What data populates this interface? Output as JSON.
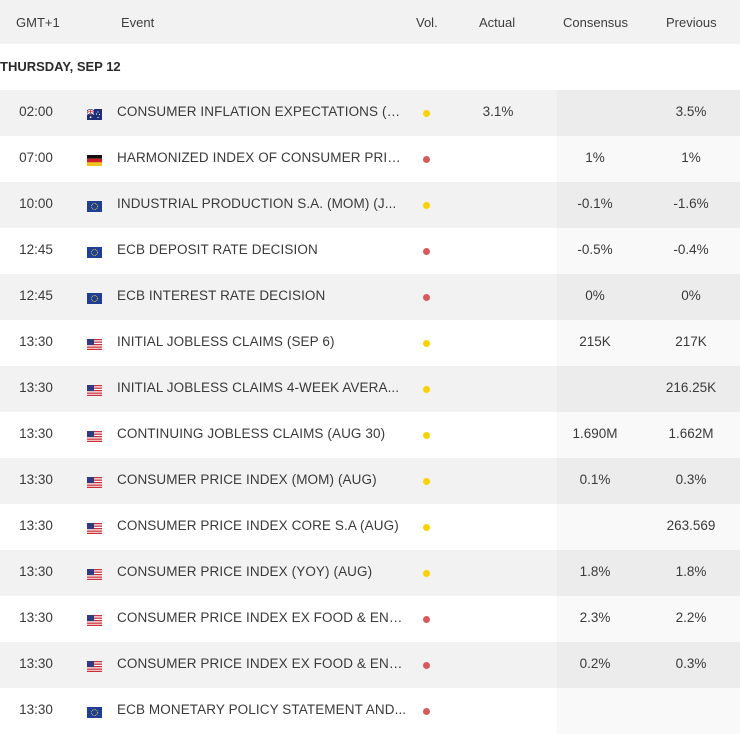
{
  "header": {
    "gmt": "GMT+1",
    "event": "Event",
    "vol": "Vol.",
    "actual": "Actual",
    "consensus": "Consensus",
    "previous": "Previous"
  },
  "day_label": "THURSDAY, SEP 12",
  "rows": [
    {
      "time": "02:00",
      "flag": "au-flag-icon",
      "event": "CONSUMER INFLATION EXPECTATIONS (S...",
      "vol": "medium",
      "actual": "3.1%",
      "consensus": "",
      "previous": "3.5%"
    },
    {
      "time": "07:00",
      "flag": "de-flag-icon",
      "event": "HARMONIZED INDEX OF CONSUMER PRIC...",
      "vol": "high",
      "actual": "",
      "consensus": "1%",
      "previous": "1%"
    },
    {
      "time": "10:00",
      "flag": "eu-flag-icon",
      "event": "INDUSTRIAL PRODUCTION S.A. (MOM) (J...",
      "vol": "medium",
      "actual": "",
      "consensus": "-0.1%",
      "previous": "-1.6%"
    },
    {
      "time": "12:45",
      "flag": "eu-flag-icon",
      "event": "ECB DEPOSIT RATE DECISION",
      "vol": "high",
      "actual": "",
      "consensus": "-0.5%",
      "previous": "-0.4%"
    },
    {
      "time": "12:45",
      "flag": "eu-flag-icon",
      "event": "ECB INTEREST RATE DECISION",
      "vol": "high",
      "actual": "",
      "consensus": "0%",
      "previous": "0%"
    },
    {
      "time": "13:30",
      "flag": "us-flag-icon",
      "event": "INITIAL JOBLESS CLAIMS (SEP 6)",
      "vol": "medium",
      "actual": "",
      "consensus": "215K",
      "previous": "217K"
    },
    {
      "time": "13:30",
      "flag": "us-flag-icon",
      "event": "INITIAL JOBLESS CLAIMS 4-WEEK AVERA...",
      "vol": "medium",
      "actual": "",
      "consensus": "",
      "previous": "216.25K"
    },
    {
      "time": "13:30",
      "flag": "us-flag-icon",
      "event": "CONTINUING JOBLESS CLAIMS (AUG 30)",
      "vol": "medium",
      "actual": "",
      "consensus": "1.690M",
      "previous": "1.662M"
    },
    {
      "time": "13:30",
      "flag": "us-flag-icon",
      "event": "CONSUMER PRICE INDEX (MOM) (AUG)",
      "vol": "medium",
      "actual": "",
      "consensus": "0.1%",
      "previous": "0.3%"
    },
    {
      "time": "13:30",
      "flag": "us-flag-icon",
      "event": "CONSUMER PRICE INDEX CORE S.A (AUG)",
      "vol": "medium",
      "actual": "",
      "consensus": "",
      "previous": "263.569"
    },
    {
      "time": "13:30",
      "flag": "us-flag-icon",
      "event": "CONSUMER PRICE INDEX (YOY) (AUG)",
      "vol": "medium",
      "actual": "",
      "consensus": "1.8%",
      "previous": "1.8%"
    },
    {
      "time": "13:30",
      "flag": "us-flag-icon",
      "event": "CONSUMER PRICE INDEX EX FOOD & ENE...",
      "vol": "high",
      "actual": "",
      "consensus": "2.3%",
      "previous": "2.2%"
    },
    {
      "time": "13:30",
      "flag": "us-flag-icon",
      "event": "CONSUMER PRICE INDEX EX FOOD & ENE...",
      "vol": "high",
      "actual": "",
      "consensus": "0.2%",
      "previous": "0.3%"
    },
    {
      "time": "13:30",
      "flag": "eu-flag-icon",
      "event": "ECB MONETARY POLICY STATEMENT AND...",
      "vol": "high",
      "actual": "",
      "consensus": "",
      "previous": ""
    }
  ],
  "colors": {
    "medium": "#f6d20a",
    "high": "#d45a5f",
    "row_alt": "#f2f2f2"
  }
}
